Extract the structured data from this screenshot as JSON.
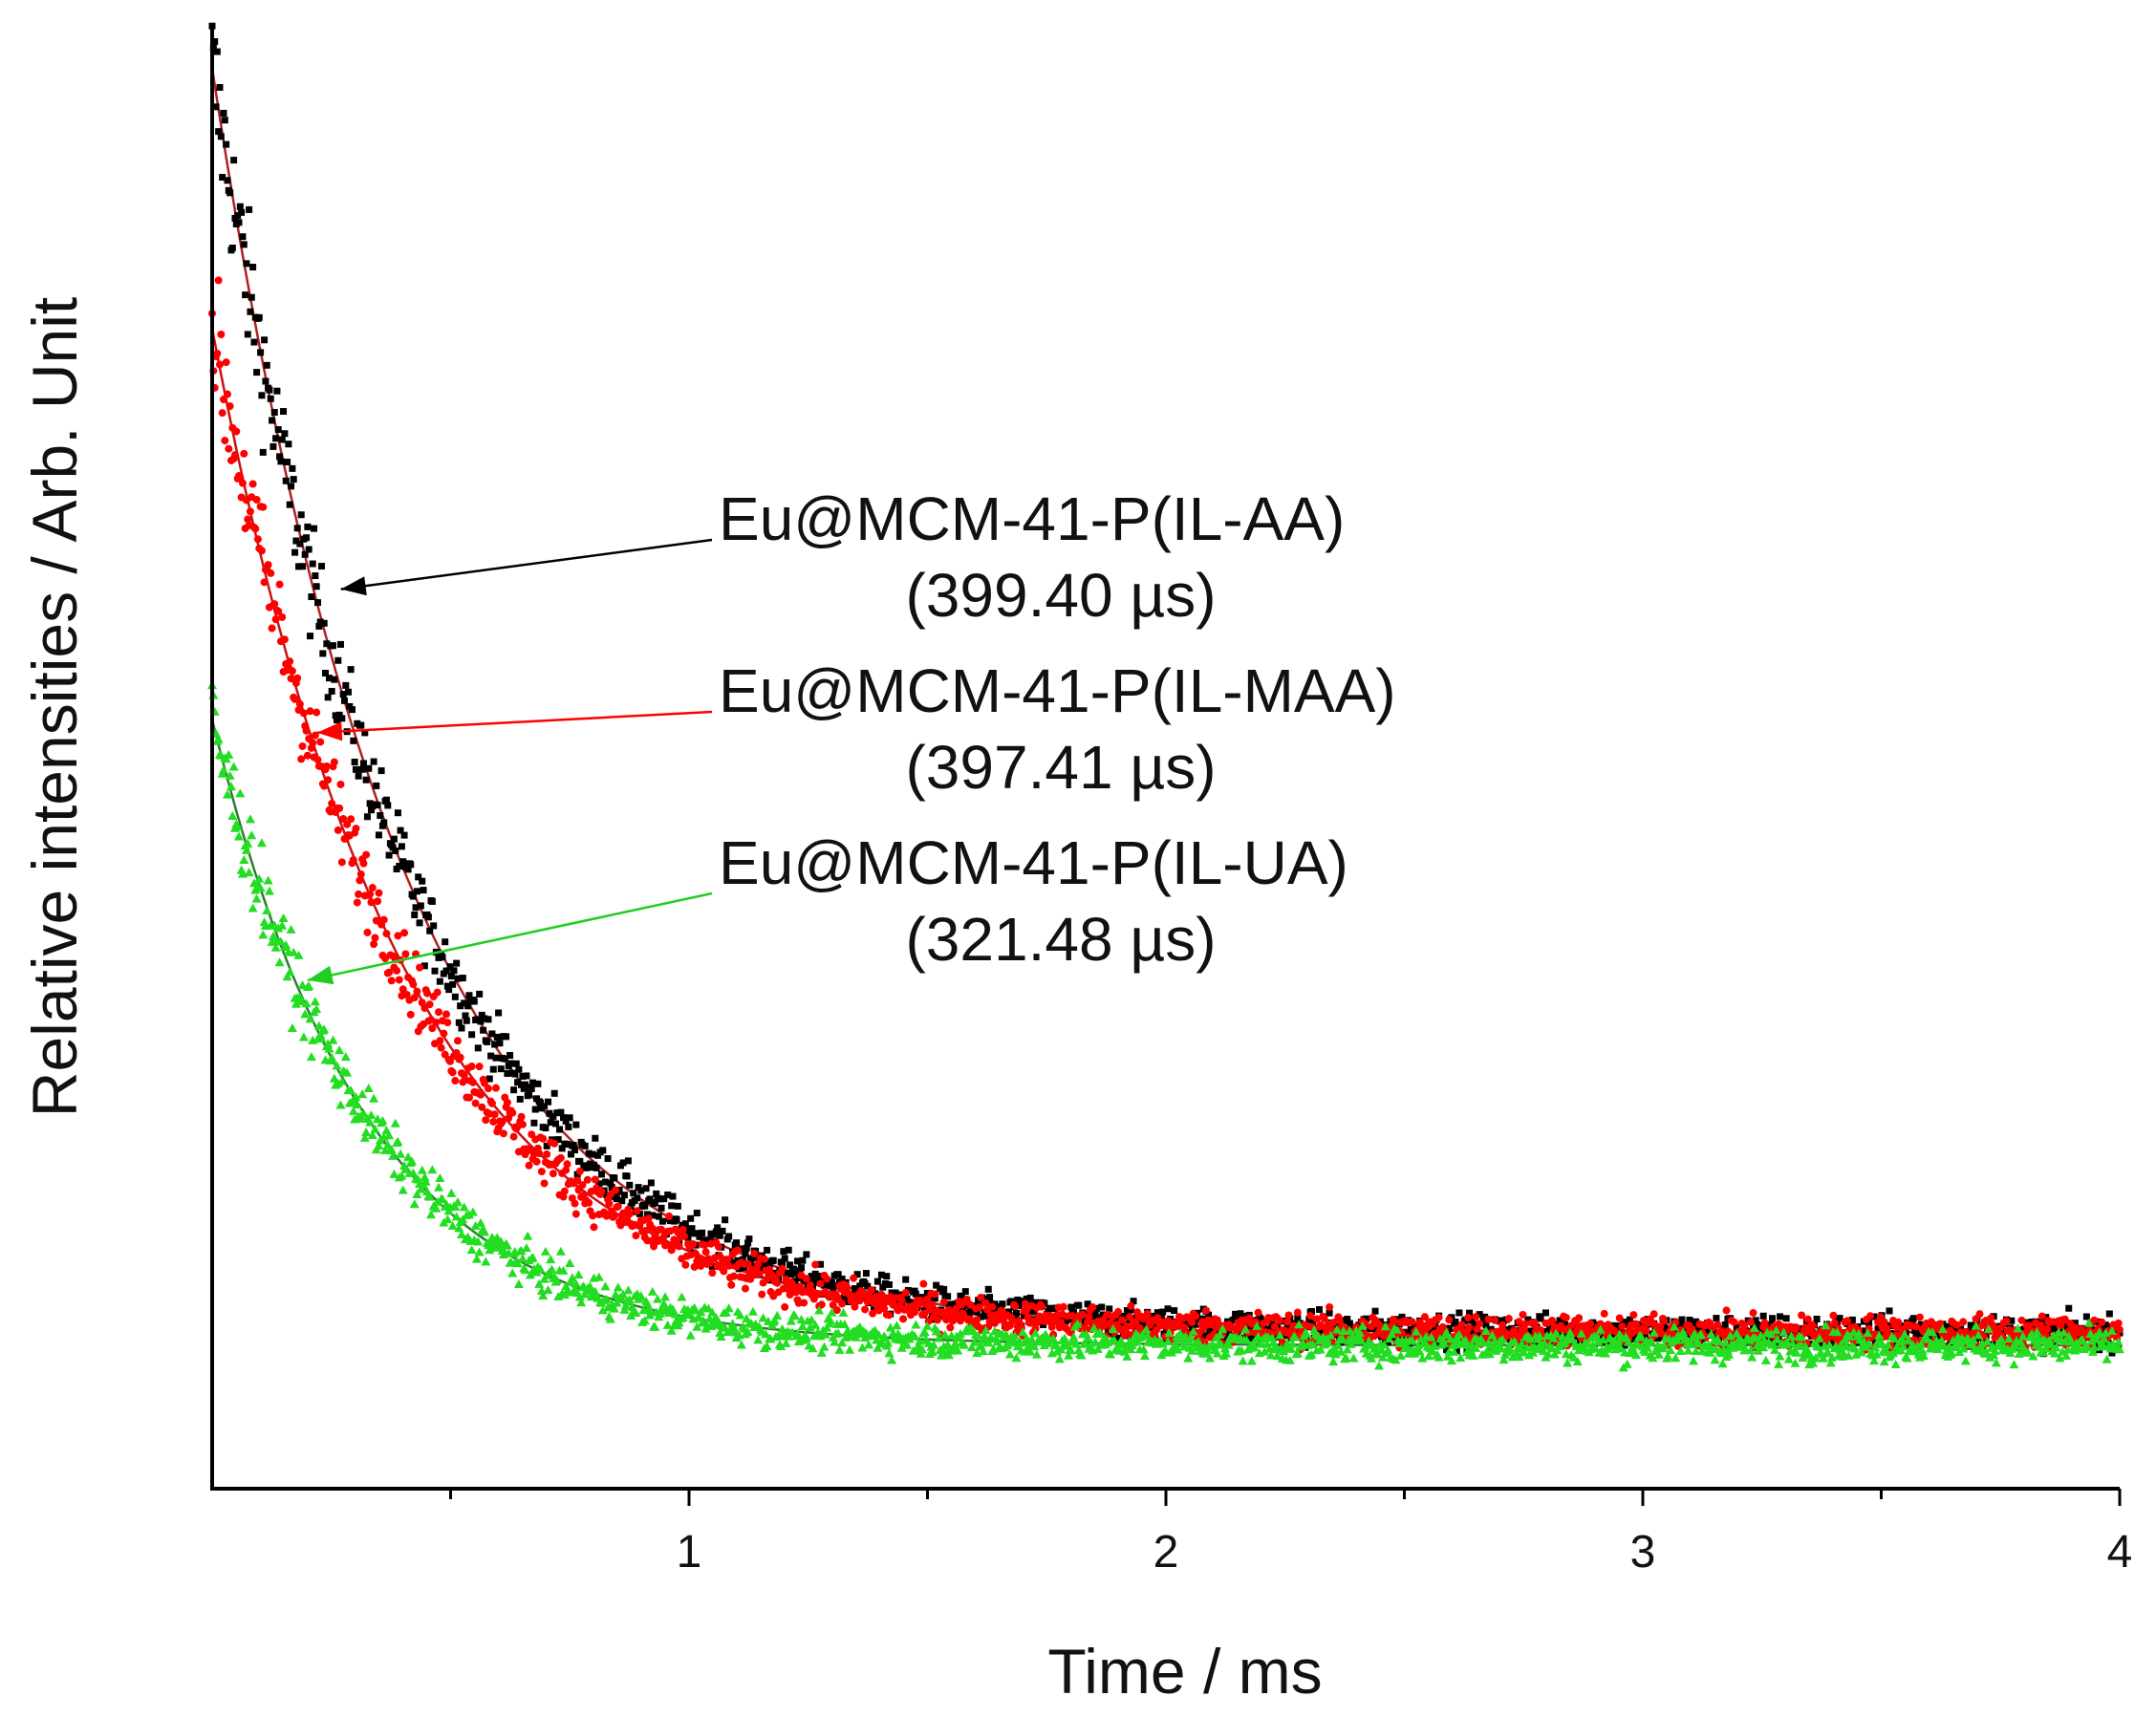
{
  "chart_data": {
    "type": "scatter",
    "title": "",
    "xlabel": "Time / ms",
    "ylabel": "Relative intensities / Arb. Unit",
    "xlim": [
      0,
      4
    ],
    "ylim": [
      -0.12,
      1.0
    ],
    "x_ticks": [
      {
        "value": 1,
        "label": "1"
      },
      {
        "value": 2,
        "label": "2"
      },
      {
        "value": 3,
        "label": "3"
      },
      {
        "value": 4,
        "label": "4"
      }
    ],
    "x_minor_ticks": [
      0.5,
      1.5,
      2.5,
      3.5
    ],
    "y_ticks_shown": false,
    "grid": false,
    "series": [
      {
        "name": "Eu@MCM-41-P(IL-AA)",
        "lifetime_label": "(399.40 µs)",
        "color": "#000000",
        "marker": "square",
        "lifetime_ms": 0.3994,
        "amplitude": 0.97,
        "offset": 0.0,
        "fit_color": "#b22222"
      },
      {
        "name": "Eu@MCM-41-P(IL-MAA)",
        "lifetime_label": "(397.41 µs)",
        "color": "#ff0000",
        "marker": "circle",
        "lifetime_ms": 0.3974,
        "amplitude": 0.77,
        "offset": 0.0,
        "fit_color": "#cc1111"
      },
      {
        "name": "Eu@MCM-41-P(IL-UA)",
        "lifetime_label": "(321.48 µs)",
        "color": "#22dd22",
        "marker": "triangle",
        "lifetime_ms": 0.3215,
        "amplitude": 0.48,
        "offset": -0.01,
        "fit_color": "#2e7d32"
      }
    ],
    "annotations": [
      {
        "series": "Eu@MCM-41-P(IL-AA)",
        "arrow_to": {
          "x": 0.27,
          "y": 0.57
        }
      },
      {
        "series": "Eu@MCM-41-P(IL-MAA)",
        "arrow_to": {
          "x": 0.22,
          "y": 0.46
        }
      },
      {
        "series": "Eu@MCM-41-P(IL-UA)",
        "arrow_to": {
          "x": 0.2,
          "y": 0.27
        }
      }
    ]
  }
}
